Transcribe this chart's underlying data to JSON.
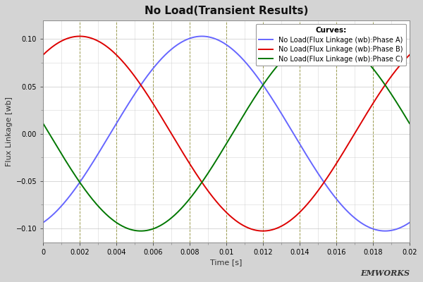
{
  "title": "No Load(Transient Results)",
  "xlabel": "Time [s]",
  "ylabel": "Flux Linkage [wb]",
  "xlim": [
    0,
    0.02
  ],
  "ylim": [
    -0.115,
    0.12
  ],
  "amplitude": 0.103,
  "frequency": 50,
  "color_A": "#6666ff",
  "color_B": "#dd0000",
  "color_C": "#007700",
  "legend_title": "Curves:",
  "legend_labels": [
    "No Load(Flux Linkage (wb):Phase A)",
    "No Load(Flux Linkage (wb):Phase B)",
    "No Load(Flux Linkage (wb):Phase C)"
  ],
  "plot_bg": "#ffffff",
  "fig_bg": "#d4d4d4",
  "xticks": [
    0,
    0.002,
    0.004,
    0.006,
    0.008,
    0.01,
    0.012,
    0.014,
    0.016,
    0.018,
    0.02
  ],
  "yticks": [
    -0.1,
    -0.05,
    0,
    0.05,
    0.1
  ],
  "line_width": 1.4,
  "watermark": "EMWORKS",
  "figsize": [
    6.0,
    4.0
  ],
  "dpi": 100
}
